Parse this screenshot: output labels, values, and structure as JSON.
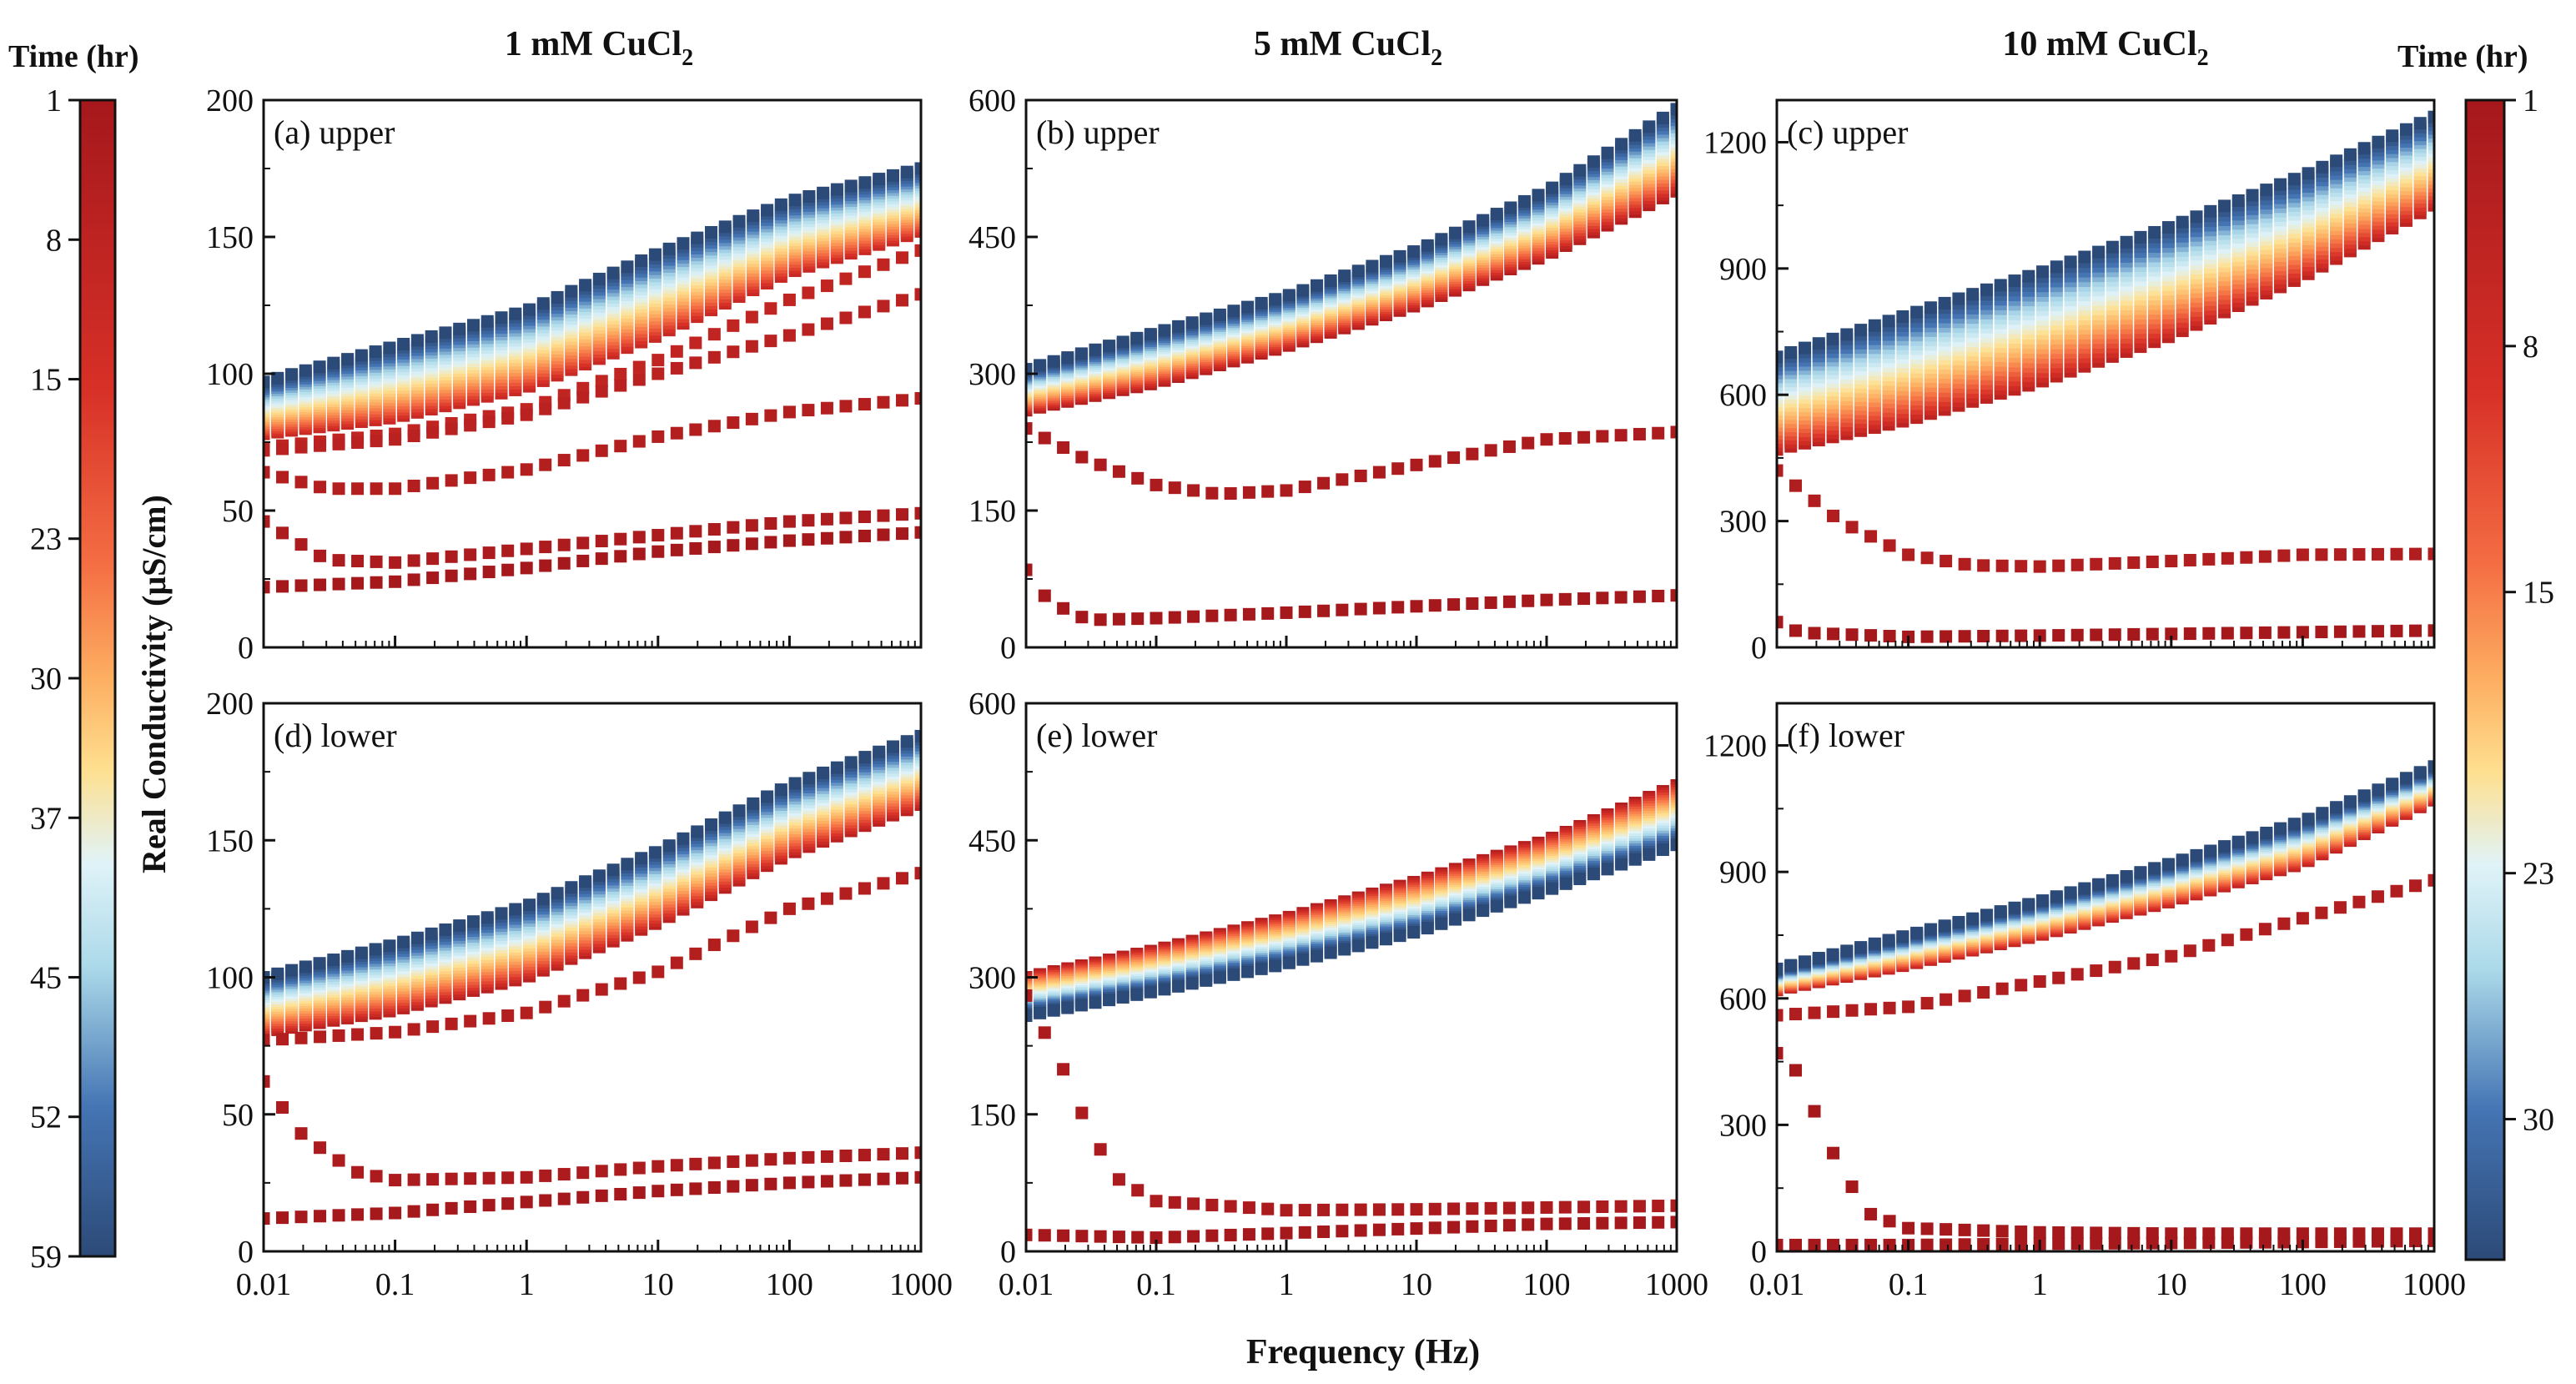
{
  "figure": {
    "xlabel": "Frequency (Hz)",
    "ylabel": "Real Conductivity (μS/cm)",
    "column_titles": [
      {
        "prefix": "1 mM CuCl",
        "sub": "2"
      },
      {
        "prefix": "5 mM CuCl",
        "sub": "2"
      },
      {
        "prefix": "10 mM CuCl",
        "sub": "2"
      }
    ],
    "left_colorbar": {
      "title": "Time (hr)",
      "range": [
        1,
        59
      ],
      "ticks": [
        "1",
        "8",
        "15",
        "23",
        "30",
        "37",
        "45",
        "52",
        "59"
      ]
    },
    "right_colorbar": {
      "title": "Time (hr)",
      "range": [
        1,
        34
      ],
      "ticks": [
        "1",
        "8",
        "15",
        "23",
        "30"
      ]
    },
    "colors": {
      "dark_red": "#a5181c",
      "red": "#d73027",
      "orange": "#f46d43",
      "light_orange": "#fdae61",
      "pale_yellow": "#fee090",
      "pale_blue": "#e0f3f8",
      "light_blue": "#abd9e9",
      "mid_blue": "#4575b4",
      "navy": "#2c4a78"
    }
  },
  "chart_data": [
    {
      "type": "scatter",
      "id": "a",
      "label": "(a) upper",
      "concentration": "1 mM CuCl2",
      "position": "upper",
      "xscale": "log",
      "xlim": [
        0.01,
        1000
      ],
      "ylim": [
        0,
        200
      ],
      "yticks": [
        "0",
        "50",
        "100",
        "150",
        "200"
      ],
      "xticks": [
        "0.01",
        "0.1",
        "1",
        "10",
        "100",
        "1000"
      ],
      "xtick_values": [
        0.01,
        0.1,
        1,
        10,
        100,
        1000
      ],
      "ytick_values": [
        0,
        50,
        100,
        150,
        200
      ],
      "colorbar": "left",
      "marker": "square",
      "band": {
        "time_range": [
          6,
          59
        ],
        "low": [
          [
            0.01,
            78
          ],
          [
            0.1,
            84
          ],
          [
            1,
            95
          ],
          [
            10,
            114
          ],
          [
            100,
            137
          ],
          [
            1000,
            152
          ]
        ],
        "high": [
          [
            0.01,
            97
          ],
          [
            0.1,
            110
          ],
          [
            1,
            123
          ],
          [
            10,
            144
          ],
          [
            100,
            163
          ],
          [
            1000,
            175
          ]
        ]
      },
      "curves": [
        {
          "time": 5,
          "points": [
            [
              0.01,
              73
            ],
            [
              0.1,
              78
            ],
            [
              1,
              87
            ],
            [
              10,
              105
            ],
            [
              100,
              127
            ],
            [
              1000,
              145
            ]
          ]
        },
        {
          "time": 4,
          "points": [
            [
              0.01,
              72
            ],
            [
              0.1,
              76
            ],
            [
              1,
              85
            ],
            [
              10,
              100
            ],
            [
              100,
              114
            ],
            [
              1000,
              129
            ]
          ]
        },
        {
          "time": 3,
          "points": [
            [
              0.01,
              64
            ],
            [
              0.03,
              58
            ],
            [
              0.1,
              58
            ],
            [
              1,
              65
            ],
            [
              10,
              77
            ],
            [
              100,
              86
            ],
            [
              1000,
              91
            ]
          ]
        },
        {
          "time": 2,
          "points": [
            [
              0.01,
              46
            ],
            [
              0.03,
              32
            ],
            [
              0.1,
              31
            ],
            [
              1,
              36
            ],
            [
              10,
              41
            ],
            [
              100,
              46
            ],
            [
              1000,
              49
            ]
          ]
        },
        {
          "time": 1,
          "points": [
            [
              0.01,
              22
            ],
            [
              0.1,
              24
            ],
            [
              1,
              29
            ],
            [
              10,
              35
            ],
            [
              100,
              39
            ],
            [
              1000,
              42
            ]
          ]
        }
      ]
    },
    {
      "type": "scatter",
      "id": "b",
      "label": "(b) upper",
      "concentration": "5 mM CuCl2",
      "position": "upper",
      "xscale": "log",
      "xlim": [
        0.01,
        1000
      ],
      "ylim": [
        0,
        600
      ],
      "yticks": [
        "0",
        "150",
        "300",
        "450",
        "600"
      ],
      "xticks": [
        "0.01",
        "0.1",
        "1",
        "10",
        "100",
        "1000"
      ],
      "xtick_values": [
        0.01,
        0.1,
        1,
        10,
        100,
        1000
      ],
      "ytick_values": [
        0,
        150,
        300,
        450,
        600
      ],
      "colorbar": "left",
      "marker": "square",
      "band": {
        "time_range": [
          3,
          59
        ],
        "low": [
          [
            0.01,
            260
          ],
          [
            0.1,
            290
          ],
          [
            1,
            330
          ],
          [
            10,
            375
          ],
          [
            100,
            430
          ],
          [
            1000,
            500
          ]
        ],
        "high": [
          [
            0.01,
            305
          ],
          [
            0.1,
            345
          ],
          [
            1,
            385
          ],
          [
            10,
            435
          ],
          [
            100,
            500
          ],
          [
            1000,
            590
          ]
        ]
      },
      "curves": [
        {
          "time": 2,
          "points": [
            [
              0.01,
              240
            ],
            [
              0.03,
              205
            ],
            [
              0.1,
              178
            ],
            [
              0.3,
              168
            ],
            [
              1,
              172
            ],
            [
              10,
              200
            ],
            [
              100,
              228
            ],
            [
              1000,
              236
            ]
          ]
        },
        {
          "time": 1,
          "points": [
            [
              0.01,
              85
            ],
            [
              0.015,
              50
            ],
            [
              0.03,
              30
            ],
            [
              0.1,
              32
            ],
            [
              1,
              38
            ],
            [
              10,
              45
            ],
            [
              100,
              52
            ],
            [
              1000,
              57
            ]
          ]
        }
      ]
    },
    {
      "type": "scatter",
      "id": "c",
      "label": "(c) upper",
      "concentration": "10 mM CuCl2",
      "position": "upper",
      "xscale": "log",
      "xlim": [
        0.01,
        1000
      ],
      "ylim": [
        0,
        1300
      ],
      "yticks": [
        "0",
        "300",
        "600",
        "900",
        "1200"
      ],
      "xticks": [
        "0.01",
        "0.1",
        "1",
        "10",
        "100",
        "1000"
      ],
      "xtick_values": [
        0.01,
        0.1,
        1,
        10,
        100,
        1000
      ],
      "ytick_values": [
        0,
        300,
        600,
        900,
        1200
      ],
      "colorbar": "right",
      "marker": "square",
      "band": {
        "time_range": [
          3,
          34
        ],
        "low": [
          [
            0.01,
            470
          ],
          [
            0.1,
            540
          ],
          [
            1,
            630
          ],
          [
            10,
            740
          ],
          [
            100,
            880
          ],
          [
            1000,
            1050
          ]
        ],
        "high": [
          [
            0.01,
            690
          ],
          [
            0.1,
            790
          ],
          [
            1,
            890
          ],
          [
            10,
            1000
          ],
          [
            100,
            1120
          ],
          [
            1000,
            1260
          ]
        ]
      },
      "curves": [
        {
          "time": 2,
          "points": [
            [
              0.01,
              420
            ],
            [
              0.03,
              300
            ],
            [
              0.1,
              220
            ],
            [
              0.3,
              195
            ],
            [
              1,
              192
            ],
            [
              10,
              205
            ],
            [
              100,
              220
            ],
            [
              1000,
              222
            ]
          ]
        },
        {
          "time": 1,
          "points": [
            [
              0.01,
              60
            ],
            [
              0.015,
              35
            ],
            [
              0.1,
              25
            ],
            [
              1,
              28
            ],
            [
              10,
              32
            ],
            [
              100,
              36
            ],
            [
              1000,
              40
            ]
          ]
        }
      ]
    },
    {
      "type": "scatter",
      "id": "d",
      "label": "(d) lower",
      "concentration": "1 mM CuCl2",
      "position": "lower",
      "xscale": "log",
      "xlim": [
        0.01,
        1000
      ],
      "ylim": [
        0,
        200
      ],
      "yticks": [
        "0",
        "50",
        "100",
        "150",
        "200"
      ],
      "xticks": [
        "0.01",
        "0.1",
        "1",
        "10",
        "100",
        "1000"
      ],
      "xtick_values": [
        0.01,
        0.1,
        1,
        10,
        100,
        1000
      ],
      "ytick_values": [
        0,
        50,
        100,
        150,
        200
      ],
      "colorbar": "left",
      "marker": "square",
      "band": {
        "time_range": [
          4,
          59
        ],
        "low": [
          [
            0.01,
            80
          ],
          [
            0.1,
            88
          ],
          [
            1,
            100
          ],
          [
            10,
            120
          ],
          [
            100,
            145
          ],
          [
            1000,
            163
          ]
        ],
        "high": [
          [
            0.01,
            100
          ],
          [
            0.1,
            112
          ],
          [
            1,
            126
          ],
          [
            10,
            146
          ],
          [
            100,
            170
          ],
          [
            1000,
            188
          ]
        ]
      },
      "curves": [
        {
          "time": 3,
          "points": [
            [
              0.01,
              77
            ],
            [
              0.1,
              80
            ],
            [
              1,
              87
            ],
            [
              10,
              102
            ],
            [
              100,
              125
            ],
            [
              1000,
              138
            ]
          ]
        },
        {
          "time": 2,
          "points": [
            [
              0.01,
              62
            ],
            [
              0.02,
              42
            ],
            [
              0.05,
              29
            ],
            [
              0.1,
              26
            ],
            [
              1,
              27
            ],
            [
              10,
              31
            ],
            [
              100,
              34
            ],
            [
              1000,
              36
            ]
          ]
        },
        {
          "time": 1,
          "points": [
            [
              0.01,
              12
            ],
            [
              0.1,
              14
            ],
            [
              1,
              18
            ],
            [
              10,
              22
            ],
            [
              100,
              25
            ],
            [
              1000,
              27
            ]
          ]
        }
      ]
    },
    {
      "type": "scatter",
      "id": "e",
      "label": "(e) lower",
      "concentration": "5 mM CuCl2",
      "position": "lower",
      "xscale": "log",
      "xlim": [
        0.01,
        1000
      ],
      "ylim": [
        0,
        600
      ],
      "yticks": [
        "0",
        "150",
        "300",
        "450",
        "600"
      ],
      "xticks": [
        "0.01",
        "0.1",
        "1",
        "10",
        "100",
        "1000"
      ],
      "xtick_values": [
        0.01,
        0.1,
        1,
        10,
        100,
        1000
      ],
      "ytick_values": [
        0,
        150,
        300,
        450,
        600
      ],
      "colorbar": "left",
      "marker": "square",
      "band_reversed": true,
      "band": {
        "time_range": [
          3,
          59
        ],
        "low": [
          [
            0.01,
            258
          ],
          [
            0.1,
            285
          ],
          [
            1,
            315
          ],
          [
            10,
            350
          ],
          [
            100,
            395
          ],
          [
            1000,
            445
          ]
        ],
        "high": [
          [
            0.01,
            300
          ],
          [
            0.1,
            330
          ],
          [
            1,
            365
          ],
          [
            10,
            405
          ],
          [
            100,
            450
          ],
          [
            1000,
            510
          ]
        ]
      },
      "curves": [
        {
          "time": 2,
          "points": [
            [
              0.01,
              280
            ],
            [
              0.015,
              230
            ],
            [
              0.02,
              195
            ],
            [
              0.03,
              135
            ],
            [
              0.05,
              80
            ],
            [
              0.1,
              55
            ],
            [
              1,
              45
            ],
            [
              10,
              46
            ],
            [
              100,
              48
            ],
            [
              1000,
              50
            ]
          ]
        },
        {
          "time": 1,
          "points": [
            [
              0.01,
              18
            ],
            [
              0.1,
              15
            ],
            [
              1,
              20
            ],
            [
              10,
              25
            ],
            [
              100,
              30
            ],
            [
              1000,
              32
            ]
          ]
        }
      ]
    },
    {
      "type": "scatter",
      "id": "f",
      "label": "(f) lower",
      "concentration": "10 mM CuCl2",
      "position": "lower",
      "xscale": "log",
      "xlim": [
        0.01,
        1000
      ],
      "ylim": [
        0,
        1300
      ],
      "yticks": [
        "0",
        "300",
        "600",
        "900",
        "1200"
      ],
      "xticks": [
        "0.01",
        "0.1",
        "1",
        "10",
        "100",
        "1000"
      ],
      "xtick_values": [
        0.01,
        0.1,
        1,
        10,
        100,
        1000
      ],
      "ytick_values": [
        0,
        300,
        600,
        900,
        1200
      ],
      "colorbar": "right",
      "marker": "square",
      "band": {
        "time_range": [
          3,
          34
        ],
        "low": [
          [
            0.01,
            620
          ],
          [
            0.1,
            680
          ],
          [
            1,
            750
          ],
          [
            10,
            830
          ],
          [
            100,
            920
          ],
          [
            1000,
            1070
          ]
        ],
        "high": [
          [
            0.01,
            670
          ],
          [
            0.1,
            750
          ],
          [
            1,
            830
          ],
          [
            10,
            920
          ],
          [
            100,
            1020
          ],
          [
            1000,
            1150
          ]
        ]
      },
      "curves": [
        {
          "time": 2,
          "points": [
            [
              0.01,
              560
            ],
            [
              0.1,
              580
            ],
            [
              1,
              640
            ],
            [
              10,
              700
            ],
            [
              100,
              790
            ],
            [
              1000,
              880
            ]
          ]
        },
        {
          "time": 1,
          "points": [
            [
              0.01,
              470
            ],
            [
              0.015,
              420
            ],
            [
              0.02,
              320
            ],
            [
              0.03,
              200
            ],
            [
              0.05,
              90
            ],
            [
              0.1,
              55
            ],
            [
              1,
              45
            ],
            [
              10,
              42
            ],
            [
              100,
              42
            ],
            [
              1000,
              42
            ]
          ]
        },
        {
          "time": 1,
          "points": [
            [
              0.01,
              15
            ],
            [
              0.1,
              15
            ],
            [
              1,
              18
            ],
            [
              10,
              20
            ],
            [
              100,
              22
            ],
            [
              1000,
              25
            ]
          ]
        }
      ]
    }
  ]
}
